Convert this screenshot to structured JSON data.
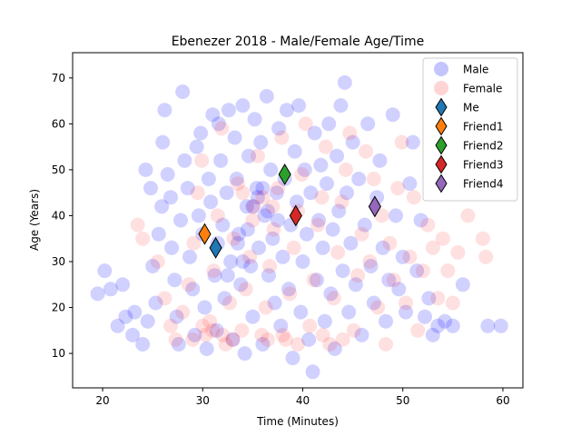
{
  "chart_data": {
    "type": "scatter",
    "title": "Ebenezer 2018 - Male/Female Age/Time",
    "xlabel": "Time (Minutes)",
    "ylabel": "Age (Years)",
    "xlim": [
      17,
      62
    ],
    "ylim": [
      2.5,
      75.5
    ],
    "xticks": [
      20,
      30,
      40,
      50,
      60
    ],
    "yticks": [
      10,
      20,
      30,
      40,
      50,
      60,
      70
    ],
    "legend_position": "top-right",
    "grid": false,
    "series": [
      {
        "name": "Male",
        "kind": "cloud",
        "color": "#0000ff",
        "alpha": 0.18,
        "points": [
          [
            19.5,
            23
          ],
          [
            20.2,
            28
          ],
          [
            20.8,
            24
          ],
          [
            21.5,
            16
          ],
          [
            22.0,
            25
          ],
          [
            22.3,
            18
          ],
          [
            23.0,
            14
          ],
          [
            23.2,
            19
          ],
          [
            24.0,
            12
          ],
          [
            24.5,
            17
          ],
          [
            24.3,
            50
          ],
          [
            24.8,
            46
          ],
          [
            25.0,
            29
          ],
          [
            25.3,
            21
          ],
          [
            25.6,
            36
          ],
          [
            25.9,
            42
          ],
          [
            26.0,
            56
          ],
          [
            26.2,
            63
          ],
          [
            26.5,
            49
          ],
          [
            26.8,
            44
          ],
          [
            26.9,
            33
          ],
          [
            27.2,
            26
          ],
          [
            27.4,
            18
          ],
          [
            27.6,
            12
          ],
          [
            27.8,
            39
          ],
          [
            28.0,
            67
          ],
          [
            28.2,
            52
          ],
          [
            28.5,
            46
          ],
          [
            28.7,
            31
          ],
          [
            29.0,
            24
          ],
          [
            29.2,
            14
          ],
          [
            29.4,
            55
          ],
          [
            29.6,
            40
          ],
          [
            29.8,
            58
          ],
          [
            30.0,
            36
          ],
          [
            30.2,
            20
          ],
          [
            30.4,
            11
          ],
          [
            30.6,
            48
          ],
          [
            30.8,
            43
          ],
          [
            31.0,
            62
          ],
          [
            31.2,
            27
          ],
          [
            31.4,
            15
          ],
          [
            31.6,
            60
          ],
          [
            31.8,
            52
          ],
          [
            32.0,
            38
          ],
          [
            32.2,
            22
          ],
          [
            32.4,
            45
          ],
          [
            32.6,
            63
          ],
          [
            32.8,
            30
          ],
          [
            33.0,
            13
          ],
          [
            33.2,
            57
          ],
          [
            33.4,
            48
          ],
          [
            33.6,
            36
          ],
          [
            33.8,
            25
          ],
          [
            34.0,
            64
          ],
          [
            34.2,
            10
          ],
          [
            34.4,
            42
          ],
          [
            34.6,
            53
          ],
          [
            34.8,
            29
          ],
          [
            35.0,
            18
          ],
          [
            35.2,
            61
          ],
          [
            35.4,
            46
          ],
          [
            35.6,
            33
          ],
          [
            35.8,
            56
          ],
          [
            36.0,
            12
          ],
          [
            36.2,
            40
          ],
          [
            36.4,
            66
          ],
          [
            36.6,
            27
          ],
          [
            36.8,
            50
          ],
          [
            37.0,
            35
          ],
          [
            37.2,
            21
          ],
          [
            37.4,
            45
          ],
          [
            37.6,
            59
          ],
          [
            37.8,
            16
          ],
          [
            38.0,
            31
          ],
          [
            38.2,
            48
          ],
          [
            38.4,
            63
          ],
          [
            38.6,
            24
          ],
          [
            38.8,
            38
          ],
          [
            39.0,
            9
          ],
          [
            39.2,
            54
          ],
          [
            39.4,
            43
          ],
          [
            39.6,
            64
          ],
          [
            39.8,
            19
          ],
          [
            40.0,
            30
          ],
          [
            40.2,
            50
          ],
          [
            40.4,
            36
          ],
          [
            40.6,
            13
          ],
          [
            40.8,
            45
          ],
          [
            41.0,
            6
          ],
          [
            41.2,
            58
          ],
          [
            41.4,
            26
          ],
          [
            41.6,
            39
          ],
          [
            41.8,
            51
          ],
          [
            42.0,
            33
          ],
          [
            42.2,
            17
          ],
          [
            42.4,
            47
          ],
          [
            42.6,
            60
          ],
          [
            42.8,
            23
          ],
          [
            43.0,
            37
          ],
          [
            43.2,
            11
          ],
          [
            43.4,
            53
          ],
          [
            43.6,
            41
          ],
          [
            43.8,
            64
          ],
          [
            44.0,
            28
          ],
          [
            44.2,
            69
          ],
          [
            44.4,
            45
          ],
          [
            44.6,
            19
          ],
          [
            44.8,
            34
          ],
          [
            45.0,
            56
          ],
          [
            45.3,
            25
          ],
          [
            45.6,
            48
          ],
          [
            45.9,
            14
          ],
          [
            46.2,
            38
          ],
          [
            46.5,
            60
          ],
          [
            46.8,
            29
          ],
          [
            47.1,
            21
          ],
          [
            47.4,
            44
          ],
          [
            47.7,
            52
          ],
          [
            48.0,
            33
          ],
          [
            48.3,
            17
          ],
          [
            48.6,
            26
          ],
          [
            49.0,
            62
          ],
          [
            49.3,
            40
          ],
          [
            49.6,
            24
          ],
          [
            50.0,
            31
          ],
          [
            50.3,
            19
          ],
          [
            50.7,
            47
          ],
          [
            51.0,
            56
          ],
          [
            51.4,
            28
          ],
          [
            51.8,
            39
          ],
          [
            52.2,
            18
          ],
          [
            52.6,
            22
          ],
          [
            53.0,
            14
          ],
          [
            53.5,
            16
          ],
          [
            54.2,
            17
          ],
          [
            55.0,
            16
          ],
          [
            56.0,
            25
          ],
          [
            58.5,
            16
          ],
          [
            59.8,
            16
          ],
          [
            33.5,
            34
          ],
          [
            34.5,
            37
          ],
          [
            35.5,
            44
          ],
          [
            36.5,
            41
          ],
          [
            37.5,
            39
          ],
          [
            35.0,
            42
          ],
          [
            36.0,
            46
          ],
          [
            34.0,
            30
          ],
          [
            32.5,
            27
          ],
          [
            31.5,
            34
          ]
        ]
      },
      {
        "name": "Female",
        "kind": "cloud",
        "color": "#ff0000",
        "alpha": 0.12,
        "points": [
          [
            23.5,
            38
          ],
          [
            24.0,
            35
          ],
          [
            25.5,
            30
          ],
          [
            26.2,
            22
          ],
          [
            26.8,
            16
          ],
          [
            27.3,
            13
          ],
          [
            28.0,
            19
          ],
          [
            28.6,
            25
          ],
          [
            29.1,
            34
          ],
          [
            29.5,
            45
          ],
          [
            29.9,
            52
          ],
          [
            30.3,
            14
          ],
          [
            30.7,
            17
          ],
          [
            31.1,
            28
          ],
          [
            31.5,
            40
          ],
          [
            31.9,
            59
          ],
          [
            32.3,
            12
          ],
          [
            32.7,
            21
          ],
          [
            33.1,
            35
          ],
          [
            33.5,
            47
          ],
          [
            33.9,
            15
          ],
          [
            34.3,
            24
          ],
          [
            34.7,
            31
          ],
          [
            35.1,
            42
          ],
          [
            35.5,
            53
          ],
          [
            35.9,
            14
          ],
          [
            36.3,
            20
          ],
          [
            36.7,
            29
          ],
          [
            37.1,
            37
          ],
          [
            37.5,
            46
          ],
          [
            37.9,
            57
          ],
          [
            38.3,
            13
          ],
          [
            38.7,
            23
          ],
          [
            39.1,
            33
          ],
          [
            39.5,
            41
          ],
          [
            39.9,
            49
          ],
          [
            40.3,
            60
          ],
          [
            40.7,
            16
          ],
          [
            41.1,
            26
          ],
          [
            41.5,
            38
          ],
          [
            41.9,
            44
          ],
          [
            42.3,
            55
          ],
          [
            42.7,
            12
          ],
          [
            43.1,
            22
          ],
          [
            43.5,
            32
          ],
          [
            43.9,
            43
          ],
          [
            44.3,
            50
          ],
          [
            44.7,
            58
          ],
          [
            45.1,
            15
          ],
          [
            45.5,
            27
          ],
          [
            45.9,
            36
          ],
          [
            46.3,
            54
          ],
          [
            46.7,
            30
          ],
          [
            47.1,
            48
          ],
          [
            47.5,
            20
          ],
          [
            47.9,
            40
          ],
          [
            48.3,
            12
          ],
          [
            48.7,
            34
          ],
          [
            49.1,
            26
          ],
          [
            49.5,
            46
          ],
          [
            49.9,
            56
          ],
          [
            50.3,
            21
          ],
          [
            50.7,
            31
          ],
          [
            51.1,
            44
          ],
          [
            51.5,
            15
          ],
          [
            52.0,
            28
          ],
          [
            52.5,
            38
          ],
          [
            53.0,
            33
          ],
          [
            53.5,
            22
          ],
          [
            54.0,
            35
          ],
          [
            54.5,
            28
          ],
          [
            55.0,
            21
          ],
          [
            55.5,
            32
          ],
          [
            56.5,
            40
          ],
          [
            58.0,
            35
          ],
          [
            58.3,
            31
          ],
          [
            36.0,
            44
          ],
          [
            37.0,
            42
          ],
          [
            35.0,
            39
          ],
          [
            34.0,
            45
          ],
          [
            31.0,
            15
          ],
          [
            32.0,
            14
          ],
          [
            33.0,
            13
          ],
          [
            30.0,
            16
          ],
          [
            29.0,
            13
          ],
          [
            36.5,
            13
          ],
          [
            38.0,
            14
          ],
          [
            39.5,
            12
          ],
          [
            42.0,
            14
          ],
          [
            44.0,
            13
          ]
        ]
      },
      {
        "name": "Me",
        "kind": "marker",
        "color": "#1f77b4",
        "points": [
          [
            31.3,
            33
          ]
        ]
      },
      {
        "name": "Friend1",
        "kind": "marker",
        "color": "#ff7f0e",
        "points": [
          [
            30.2,
            36
          ]
        ]
      },
      {
        "name": "Friend2",
        "kind": "marker",
        "color": "#2ca02c",
        "points": [
          [
            38.2,
            49
          ]
        ]
      },
      {
        "name": "Friend3",
        "kind": "marker",
        "color": "#d62728",
        "points": [
          [
            39.3,
            40
          ]
        ]
      },
      {
        "name": "Friend4",
        "kind": "marker",
        "color": "#9467bd",
        "points": [
          [
            47.2,
            42
          ]
        ]
      }
    ]
  }
}
